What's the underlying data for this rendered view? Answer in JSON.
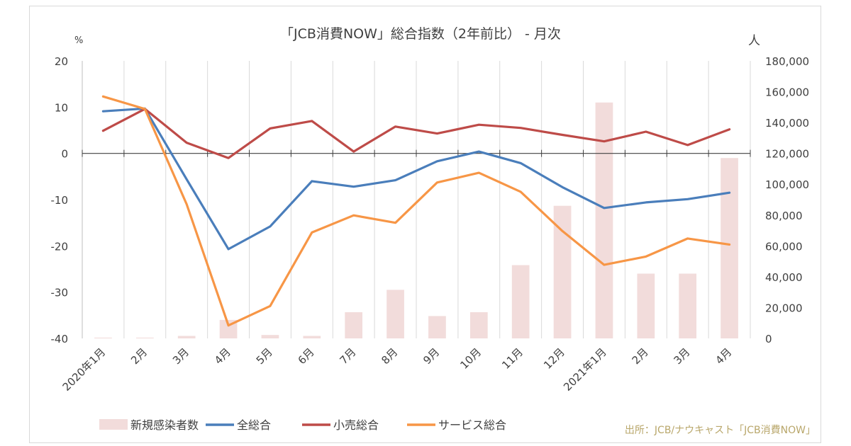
{
  "chart_data": {
    "type": "bar+line",
    "title": "「JCB消費NOW」総合指数（2年前比） - 月次",
    "left_unit": "%",
    "right_unit": "人",
    "categories": [
      "2020年1月",
      "2月",
      "3月",
      "4月",
      "5月",
      "6月",
      "7月",
      "8月",
      "9月",
      "10月",
      "11月",
      "12月",
      "2021年1月",
      "2月",
      "3月",
      "4月"
    ],
    "y_left": {
      "min": -40,
      "max": 20,
      "step": 10,
      "ticks": [
        "20",
        "10",
        "0",
        "-10",
        "-20",
        "-30",
        "-40"
      ]
    },
    "y_right": {
      "min": 0,
      "max": 180000,
      "step": 20000,
      "ticks": [
        "180,000",
        "160,000",
        "140,000",
        "120,000",
        "100,000",
        "80,000",
        "60,000",
        "40,000",
        "20,000",
        "0"
      ]
    },
    "bars": {
      "name": "新規感染者数",
      "axis": "right",
      "color": "#f2dcdb",
      "values": [
        500,
        500,
        1600,
        12000,
        2200,
        1600,
        17000,
        31500,
        14500,
        17000,
        47500,
        86000,
        153000,
        42000,
        42000,
        117000
      ]
    },
    "series": [
      {
        "name": "全総合",
        "axis": "left",
        "color": "#4a7ebb",
        "values": [
          9.1,
          9.7,
          -5.6,
          -20.7,
          -15.8,
          -6.0,
          -7.2,
          -5.8,
          -1.7,
          0.4,
          -2.1,
          -7.3,
          -11.8,
          -10.6,
          -9.9,
          -8.5
        ]
      },
      {
        "name": "小売総合",
        "axis": "left",
        "color": "#be4b48",
        "values": [
          4.9,
          9.6,
          2.3,
          -1.0,
          5.4,
          7.0,
          0.4,
          5.8,
          4.3,
          6.2,
          5.5,
          4.0,
          2.6,
          4.7,
          1.8,
          5.2
        ]
      },
      {
        "name": "サービス総合",
        "axis": "left",
        "color": "#f79646",
        "values": [
          12.3,
          9.6,
          -11.0,
          -37.2,
          -33.0,
          -17.1,
          -13.4,
          -15.0,
          -6.3,
          -4.2,
          -8.3,
          -16.8,
          -24.1,
          -22.3,
          -18.4,
          -19.7
        ]
      }
    ],
    "legend_position": "bottom",
    "grid": "vertical"
  },
  "source_note": "出所：JCB/ナウキャスト「JCB消費NOW」"
}
